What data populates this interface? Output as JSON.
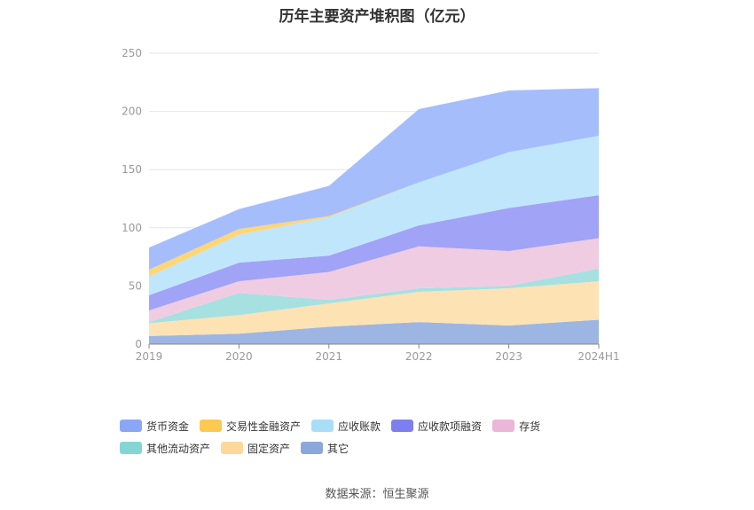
{
  "chart_data": {
    "type": "area",
    "title": "历年主要资产堆积图（亿元）",
    "categories": [
      "2019",
      "2020",
      "2021",
      "2022",
      "2023",
      "2024H1"
    ],
    "y_ticks": [
      "0",
      "50",
      "100",
      "150",
      "200",
      "250"
    ],
    "ylim": [
      0,
      250
    ],
    "grid": true,
    "legend_position": "bottom",
    "stacked": true,
    "series": [
      {
        "name": "其它",
        "color": "#9db5e3",
        "values": [
          7,
          9,
          15,
          19,
          16,
          21
        ]
      },
      {
        "name": "固定资产",
        "color": "#fde2b4",
        "values": [
          11,
          16,
          20,
          26,
          32,
          33
        ]
      },
      {
        "name": "其他流动资产",
        "color": "#a7e0e0",
        "values": [
          1,
          19,
          3,
          3,
          2,
          11
        ]
      },
      {
        "name": "存货",
        "color": "#f0cce3",
        "values": [
          10,
          10,
          24,
          36,
          30,
          26
        ]
      },
      {
        "name": "应收款项融资",
        "color": "#a1a3f7",
        "values": [
          13,
          16,
          14,
          18,
          37,
          37
        ]
      },
      {
        "name": "应收账款",
        "color": "#c0e6fb",
        "values": [
          16,
          24,
          33,
          37,
          48,
          51
        ]
      },
      {
        "name": "交易性金融资产",
        "color": "#fdd677",
        "values": [
          6,
          5,
          1,
          0,
          0,
          0
        ]
      },
      {
        "name": "货币资金",
        "color": "#a6bdfc",
        "values": [
          19,
          17,
          26,
          63,
          53,
          41
        ]
      }
    ],
    "legend": [
      {
        "name": "货币资金",
        "color": "#8aa7f7"
      },
      {
        "name": "交易性金融资产",
        "color": "#fdc94f"
      },
      {
        "name": "应收账款",
        "color": "#a9def9"
      },
      {
        "name": "应收款项融资",
        "color": "#7d7ff0"
      },
      {
        "name": "存货",
        "color": "#ebb6d8"
      },
      {
        "name": "其他流动资产",
        "color": "#86d5d5"
      },
      {
        "name": "固定资产",
        "color": "#fcd99a"
      },
      {
        "name": "其它",
        "color": "#8ba7dd"
      }
    ]
  },
  "source": "数据来源：恒生聚源"
}
